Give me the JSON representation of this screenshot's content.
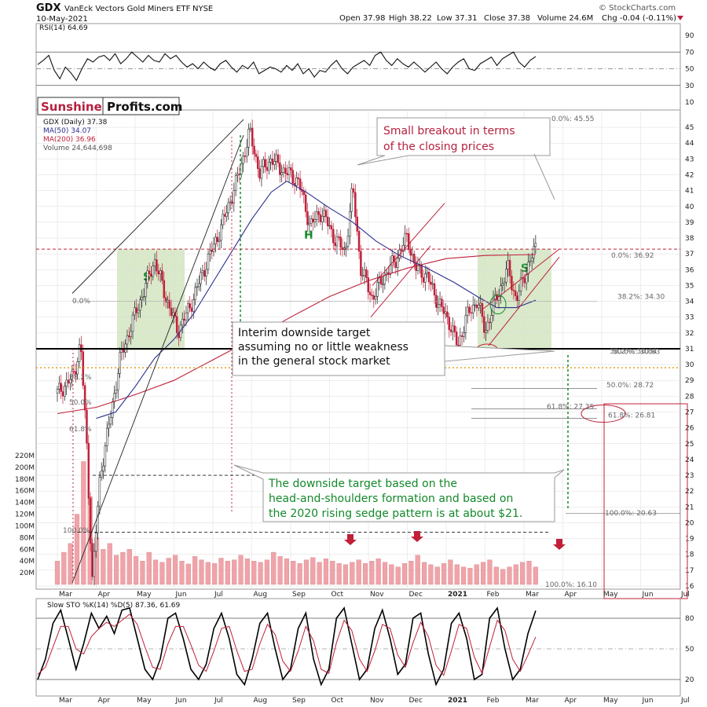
{
  "header": {
    "symbol": "GDX",
    "name": "VanEck Vectors Gold Miners ETF",
    "exchange": "NYSE",
    "date": "10-May-2021",
    "open": "Open 37.98",
    "high": "High 38.22",
    "low": "Low 37.31",
    "close": "Close 37.38",
    "volume": "Volume 24.6M",
    "chg": "Chg -0.04 (-0.11%)",
    "watermark": "© StockCharts.com"
  },
  "colors": {
    "price_up": "#1a1a1a",
    "price_down": "#c0203a",
    "ma50": "#2b2f8f",
    "ma200": "#c0203a",
    "box": "#cfe3bd",
    "annot_red": "#b5213f",
    "annot_green": "#13892a",
    "target_line": "#13892a",
    "volume": "#f0a3a8",
    "grid": "#dcdcdc"
  },
  "logo": {
    "part1": "Sunshine",
    "part2": "Profits.com"
  },
  "chart_data": [
    {
      "type": "line",
      "panel": "rsi",
      "label": "RSI(14) 64.69",
      "ylim": [
        0,
        100
      ],
      "yticks": [
        10,
        30,
        50,
        70,
        90
      ],
      "levels": [
        30,
        70
      ],
      "values": [
        55,
        60,
        66,
        48,
        38,
        52,
        45,
        36,
        50,
        62,
        58,
        64,
        66,
        60,
        68,
        56,
        62,
        70,
        64,
        58,
        66,
        60,
        58,
        68,
        62,
        66,
        58,
        52,
        56,
        50,
        58,
        52,
        48,
        56,
        60,
        52,
        46,
        54,
        50,
        58,
        44,
        48,
        52,
        50,
        46,
        54,
        48,
        56,
        44,
        50,
        40,
        48,
        46,
        54,
        60,
        50,
        44,
        52,
        56,
        60,
        54,
        66,
        70,
        60,
        54,
        62,
        56,
        52,
        58,
        52,
        46,
        52,
        58,
        50,
        44,
        52,
        58,
        62,
        50,
        48,
        56,
        60,
        64,
        54,
        62,
        66,
        70,
        58,
        52,
        60,
        64.69
      ]
    },
    {
      "type": "candlestick",
      "panel": "price",
      "label": "GDX (Daily) 37.38",
      "legend": [
        "MA(50) 34.07",
        "MA(200) 36.96",
        "Volume 24,644,698"
      ],
      "ylim": [
        16,
        46
      ],
      "yticks": [
        16,
        17,
        18,
        19,
        20,
        21,
        22,
        23,
        24,
        25,
        26,
        27,
        28,
        29,
        30,
        31,
        32,
        33,
        34,
        35,
        36,
        37,
        38,
        39,
        40,
        41,
        42,
        43,
        44,
        45
      ],
      "xlabels": [
        "Mar",
        "Apr",
        "May",
        "Jun",
        "Jul",
        "Aug",
        "Sep",
        "Oct",
        "Nov",
        "Dec",
        "2021",
        "Feb",
        "Mar",
        "Apr",
        "May",
        "Jun",
        "Jul",
        "Aug"
      ],
      "close_path": [
        {
          "m": 0,
          "v": 28.2
        },
        {
          "m": 0.4,
          "v": 29.2
        },
        {
          "m": 0.6,
          "v": 31.3
        },
        {
          "m": 0.75,
          "v": 25.2
        },
        {
          "m": 0.9,
          "v": 16.3
        },
        {
          "m": 1.1,
          "v": 23.0
        },
        {
          "m": 1.4,
          "v": 27.2
        },
        {
          "m": 1.6,
          "v": 30.2
        },
        {
          "m": 1.9,
          "v": 32.5
        },
        {
          "m": 2.2,
          "v": 34.5
        },
        {
          "m": 2.5,
          "v": 36.6
        },
        {
          "m": 2.8,
          "v": 34.2
        },
        {
          "m": 3.1,
          "v": 32.1
        },
        {
          "m": 3.4,
          "v": 33.6
        },
        {
          "m": 3.8,
          "v": 36.2
        },
        {
          "m": 4.2,
          "v": 38.6
        },
        {
          "m": 4.6,
          "v": 41.5
        },
        {
          "m": 4.95,
          "v": 44.7
        },
        {
          "m": 5.2,
          "v": 42.1
        },
        {
          "m": 5.5,
          "v": 43.0
        },
        {
          "m": 5.8,
          "v": 42.3
        },
        {
          "m": 6.2,
          "v": 41.6
        },
        {
          "m": 6.5,
          "v": 38.8
        },
        {
          "m": 6.8,
          "v": 39.7
        },
        {
          "m": 7.1,
          "v": 38.1
        },
        {
          "m": 7.4,
          "v": 37.1
        },
        {
          "m": 7.6,
          "v": 41.2
        },
        {
          "m": 7.8,
          "v": 36.1
        },
        {
          "m": 8.1,
          "v": 34.2
        },
        {
          "m": 8.4,
          "v": 35.6
        },
        {
          "m": 8.7,
          "v": 36.6
        },
        {
          "m": 9.0,
          "v": 38.1
        },
        {
          "m": 9.2,
          "v": 36.1
        },
        {
          "m": 9.5,
          "v": 35.6
        },
        {
          "m": 9.8,
          "v": 33.9
        },
        {
          "m": 10.1,
          "v": 32.6
        },
        {
          "m": 10.3,
          "v": 31.1
        },
        {
          "m": 10.5,
          "v": 32.9
        },
        {
          "m": 10.8,
          "v": 34.1
        },
        {
          "m": 11.0,
          "v": 32.1
        },
        {
          "m": 11.3,
          "v": 34.3
        },
        {
          "m": 11.6,
          "v": 36.1
        },
        {
          "m": 11.8,
          "v": 34.0
        },
        {
          "m": 12.0,
          "v": 35.6
        },
        {
          "m": 12.3,
          "v": 37.38
        }
      ],
      "ma50_path": [
        {
          "m": 1.0,
          "v": 26.6
        },
        {
          "m": 1.5,
          "v": 27.0
        },
        {
          "m": 2.0,
          "v": 28.6
        },
        {
          "m": 2.5,
          "v": 30.4
        },
        {
          "m": 3.0,
          "v": 31.6
        },
        {
          "m": 3.5,
          "v": 33.2
        },
        {
          "m": 4.0,
          "v": 35.2
        },
        {
          "m": 4.5,
          "v": 37.2
        },
        {
          "m": 5.0,
          "v": 39.2
        },
        {
          "m": 5.5,
          "v": 40.9
        },
        {
          "m": 5.9,
          "v": 41.6
        },
        {
          "m": 6.4,
          "v": 40.9
        },
        {
          "m": 7.0,
          "v": 39.9
        },
        {
          "m": 7.6,
          "v": 39.0
        },
        {
          "m": 8.2,
          "v": 37.8
        },
        {
          "m": 8.8,
          "v": 36.9
        },
        {
          "m": 9.5,
          "v": 36.1
        },
        {
          "m": 10.2,
          "v": 35.2
        },
        {
          "m": 10.8,
          "v": 34.3
        },
        {
          "m": 11.3,
          "v": 33.6
        },
        {
          "m": 11.8,
          "v": 33.6
        },
        {
          "m": 12.3,
          "v": 34.07
        }
      ],
      "ma200_path": [
        {
          "m": 0,
          "v": 26.9
        },
        {
          "m": 1.0,
          "v": 27.3
        },
        {
          "m": 2.0,
          "v": 28.1
        },
        {
          "m": 3.0,
          "v": 29.0
        },
        {
          "m": 4.0,
          "v": 30.3
        },
        {
          "m": 5.0,
          "v": 31.6
        },
        {
          "m": 6.0,
          "v": 33.0
        },
        {
          "m": 7.0,
          "v": 34.3
        },
        {
          "m": 8.0,
          "v": 35.3
        },
        {
          "m": 9.0,
          "v": 36.1
        },
        {
          "m": 10.0,
          "v": 36.7
        },
        {
          "m": 11.0,
          "v": 36.9
        },
        {
          "m": 12.3,
          "v": 36.96
        }
      ],
      "hlines": [
        {
          "v": 37.3,
          "style": "red-dash"
        },
        {
          "v": 31.0,
          "style": "black-solid"
        },
        {
          "v": 29.8,
          "style": "orange-dot"
        }
      ],
      "fib_labels": [
        {
          "text": "0.0%: 45.55",
          "v": 45.55
        },
        {
          "text": "0.0%: 36.92",
          "v": 36.92
        },
        {
          "text": "38.2%: 34.30",
          "v": 34.3
        },
        {
          "text": "50.0%: 30.83",
          "v": 30.83
        },
        {
          "text": "38.2%: 30.84",
          "v": 30.84
        },
        {
          "text": "50.0%: 28.72",
          "v": 28.72
        },
        {
          "text": "61.8%: 27.35",
          "v": 27.35
        },
        {
          "text": "61.8%: 26.81",
          "v": 26.81
        },
        {
          "text": "100.0%: 20.63",
          "v": 20.63
        },
        {
          "text": "100.0%: 16.10",
          "v": 16.1
        }
      ],
      "left_fib_labels": [
        "0.0%",
        "38.2%",
        "50.0%",
        "61.8%",
        "100.0%"
      ],
      "pattern_labels": {
        "left_shoulder": "S",
        "head": "H",
        "right_shoulder": "S"
      }
    },
    {
      "type": "bar",
      "panel": "volume",
      "ylim": [
        0,
        230
      ],
      "yticks": [
        "20M",
        "40M",
        "60M",
        "80M",
        "100M",
        "120M",
        "140M",
        "160M",
        "180M",
        "200M",
        "220M"
      ],
      "values": [
        40,
        55,
        70,
        120,
        210,
        150,
        80,
        60,
        70,
        50,
        55,
        60,
        48,
        40,
        55,
        42,
        38,
        45,
        50,
        40,
        35,
        48,
        42,
        38,
        36,
        45,
        40,
        42,
        50,
        44,
        40,
        38,
        42,
        55,
        48,
        44,
        40,
        36,
        42,
        46,
        38,
        44,
        40,
        36,
        34,
        38,
        42,
        36,
        40,
        44,
        38,
        34,
        30,
        36,
        40,
        50,
        38,
        34,
        30,
        36,
        42,
        34,
        30,
        28,
        34,
        38,
        42,
        30,
        26,
        30,
        34,
        38,
        40,
        30
      ]
    },
    {
      "type": "line",
      "panel": "stochastic",
      "label": "Slow STO %K(14) %D(5) 87.36, 61.69",
      "ylim": [
        10,
        90
      ],
      "yticks": [
        20,
        50,
        80
      ],
      "series": [
        {
          "name": "%K",
          "values": [
            20,
            40,
            75,
            88,
            60,
            30,
            55,
            85,
            70,
            82,
            65,
            88,
            90,
            60,
            30,
            20,
            40,
            80,
            85,
            60,
            30,
            20,
            35,
            70,
            85,
            60,
            25,
            15,
            40,
            75,
            85,
            50,
            20,
            30,
            70,
            85,
            40,
            15,
            30,
            80,
            90,
            55,
            20,
            30,
            70,
            88,
            60,
            25,
            35,
            80,
            85,
            45,
            15,
            30,
            75,
            85,
            60,
            20,
            25,
            80,
            90,
            50,
            20,
            30,
            65,
            87.36
          ]
        },
        {
          "name": "%D",
          "values": [
            25,
            32,
            52,
            72,
            72,
            50,
            45,
            62,
            70,
            76,
            72,
            78,
            84,
            74,
            52,
            32,
            30,
            55,
            72,
            72,
            54,
            34,
            28,
            48,
            70,
            72,
            48,
            28,
            30,
            55,
            74,
            64,
            38,
            28,
            48,
            72,
            58,
            30,
            26,
            56,
            78,
            68,
            40,
            28,
            48,
            74,
            70,
            44,
            32,
            56,
            76,
            62,
            34,
            24,
            48,
            74,
            70,
            42,
            26,
            52,
            78,
            68,
            40,
            28,
            44,
            61.69
          ]
        }
      ]
    }
  ],
  "annotations": {
    "breakout": "Small breakout in terms\nof the closing prices",
    "interim": "Interim downside target\nassuming no or little weakness\nin the general stock market",
    "downside": "The downside target based on the\nhead-and-shoulders formation and based on\nthe 2020 rising sedge pattern is at about $21."
  }
}
